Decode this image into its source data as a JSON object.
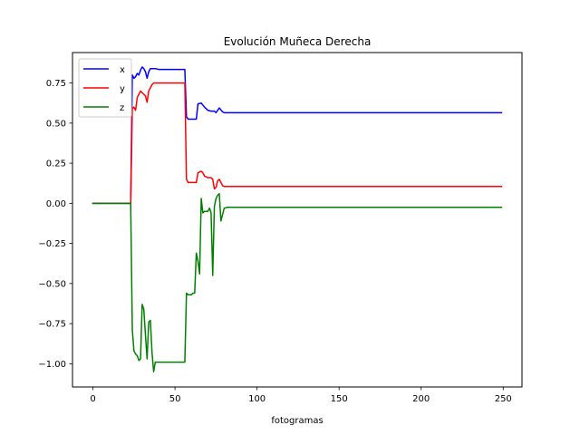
{
  "chart_data": {
    "type": "line",
    "title": "Evolución Muñeca Derecha",
    "xlabel": "fotogramas",
    "ylabel": "",
    "xlim": [
      -12.45,
      261.45
    ],
    "ylim": [
      -1.145,
      0.94
    ],
    "xticks": [
      0,
      50,
      100,
      150,
      200,
      250
    ],
    "yticks": [
      -1.0,
      -0.75,
      -0.5,
      -0.25,
      0.0,
      0.25,
      0.5,
      0.75
    ],
    "xtick_labels": [
      "0",
      "50",
      "100",
      "150",
      "200",
      "250"
    ],
    "ytick_labels": [
      "−1.00",
      "−0.75",
      "−0.50",
      "−0.25",
      "0.00",
      "0.25",
      "0.50",
      "0.75"
    ],
    "grid": false,
    "legend_position": "top-left",
    "series": [
      {
        "name": "x",
        "color": "#0000ff",
        "points": [
          [
            0,
            0
          ],
          [
            23,
            0
          ],
          [
            24,
            0.8
          ],
          [
            25,
            0.78
          ],
          [
            26,
            0.79
          ],
          [
            27,
            0.81
          ],
          [
            28,
            0.8
          ],
          [
            29,
            0.83
          ],
          [
            30,
            0.85
          ],
          [
            31,
            0.84
          ],
          [
            32,
            0.82
          ],
          [
            33,
            0.78
          ],
          [
            34,
            0.82
          ],
          [
            35,
            0.84
          ],
          [
            36,
            0.84
          ],
          [
            38,
            0.84
          ],
          [
            40,
            0.835
          ],
          [
            45,
            0.835
          ],
          [
            50,
            0.835
          ],
          [
            56,
            0.835
          ],
          [
            57,
            0.54
          ],
          [
            58,
            0.525
          ],
          [
            60,
            0.525
          ],
          [
            62,
            0.525
          ],
          [
            63,
            0.525
          ],
          [
            64,
            0.62
          ],
          [
            66,
            0.625
          ],
          [
            68,
            0.6
          ],
          [
            70,
            0.58
          ],
          [
            72,
            0.575
          ],
          [
            74,
            0.575
          ],
          [
            75,
            0.565
          ],
          [
            77,
            0.595
          ],
          [
            79,
            0.57
          ],
          [
            80,
            0.565
          ],
          [
            100,
            0.565
          ],
          [
            150,
            0.565
          ],
          [
            200,
            0.565
          ],
          [
            249,
            0.565
          ]
        ]
      },
      {
        "name": "y",
        "color": "#ff0000",
        "points": [
          [
            0,
            0
          ],
          [
            23,
            0
          ],
          [
            24,
            0.59
          ],
          [
            25,
            0.6
          ],
          [
            26,
            0.58
          ],
          [
            27,
            0.66
          ],
          [
            28,
            0.68
          ],
          [
            29,
            0.7
          ],
          [
            30,
            0.69
          ],
          [
            31,
            0.68
          ],
          [
            32,
            0.67
          ],
          [
            33,
            0.63
          ],
          [
            34,
            0.7
          ],
          [
            35,
            0.72
          ],
          [
            36,
            0.74
          ],
          [
            37,
            0.75
          ],
          [
            40,
            0.75
          ],
          [
            45,
            0.75
          ],
          [
            50,
            0.75
          ],
          [
            56,
            0.75
          ],
          [
            57,
            0.15
          ],
          [
            58,
            0.13
          ],
          [
            60,
            0.13
          ],
          [
            62,
            0.13
          ],
          [
            63,
            0.13
          ],
          [
            64,
            0.19
          ],
          [
            66,
            0.2
          ],
          [
            67,
            0.19
          ],
          [
            68,
            0.17
          ],
          [
            70,
            0.16
          ],
          [
            72,
            0.16
          ],
          [
            73,
            0.15
          ],
          [
            74,
            0.09
          ],
          [
            75,
            0.1
          ],
          [
            76,
            0.14
          ],
          [
            77,
            0.15
          ],
          [
            78,
            0.13
          ],
          [
            79,
            0.11
          ],
          [
            80,
            0.105
          ],
          [
            100,
            0.105
          ],
          [
            150,
            0.105
          ],
          [
            200,
            0.105
          ],
          [
            249,
            0.105
          ]
        ]
      },
      {
        "name": "z",
        "color": "#008000",
        "points": [
          [
            0,
            0
          ],
          [
            23,
            0
          ],
          [
            24,
            -0.79
          ],
          [
            25,
            -0.92
          ],
          [
            26,
            -0.94
          ],
          [
            27,
            -0.95
          ],
          [
            28,
            -0.98
          ],
          [
            29,
            -0.97
          ],
          [
            30,
            -0.63
          ],
          [
            31,
            -0.66
          ],
          [
            32,
            -0.82
          ],
          [
            33,
            -0.97
          ],
          [
            34,
            -0.74
          ],
          [
            35,
            -0.73
          ],
          [
            36,
            -0.93
          ],
          [
            37,
            -1.05
          ],
          [
            38,
            -0.99
          ],
          [
            40,
            -0.99
          ],
          [
            45,
            -0.99
          ],
          [
            50,
            -0.99
          ],
          [
            56,
            -0.99
          ],
          [
            57,
            -0.56
          ],
          [
            58,
            -0.57
          ],
          [
            60,
            -0.57
          ],
          [
            61,
            -0.56
          ],
          [
            62,
            -0.56
          ],
          [
            63,
            -0.31
          ],
          [
            64,
            -0.36
          ],
          [
            65,
            -0.44
          ],
          [
            66,
            0.03
          ],
          [
            67,
            -0.06
          ],
          [
            68,
            -0.05
          ],
          [
            70,
            -0.05
          ],
          [
            71,
            -0.03
          ],
          [
            72,
            -0.06
          ],
          [
            73,
            -0.45
          ],
          [
            74,
            -0.02
          ],
          [
            75,
            0.03
          ],
          [
            76,
            0.05
          ],
          [
            77,
            0.06
          ],
          [
            78,
            -0.11
          ],
          [
            79,
            -0.07
          ],
          [
            80,
            -0.03
          ],
          [
            82,
            -0.025
          ],
          [
            100,
            -0.025
          ],
          [
            150,
            -0.025
          ],
          [
            200,
            -0.025
          ],
          [
            249,
            -0.025
          ]
        ]
      }
    ]
  }
}
